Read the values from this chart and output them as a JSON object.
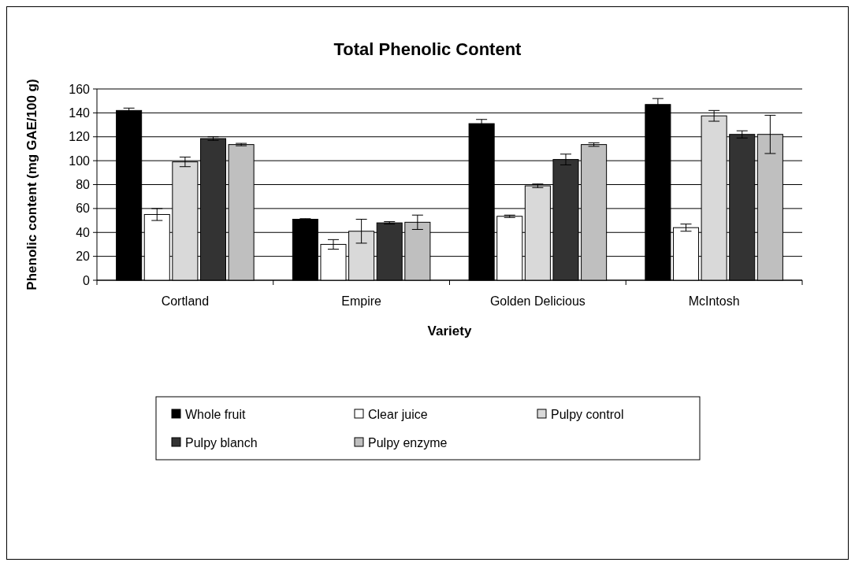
{
  "chart_data": {
    "type": "bar",
    "title": "Total Phenolic Content",
    "xlabel": "Variety",
    "ylabel": "Phenolic content (mg GAE/100 g)",
    "categories": [
      "Cortland",
      "Empire",
      "Golden Delicious",
      "McIntosh"
    ],
    "series": [
      {
        "name": "Whole fruit",
        "color": "#000000",
        "values": [
          142,
          51,
          131,
          147
        ],
        "errors": [
          2,
          0.5,
          3.5,
          5
        ]
      },
      {
        "name": "Clear juice",
        "color": "#ffffff",
        "values": [
          55,
          30,
          53.5,
          44
        ],
        "errors": [
          5,
          4,
          1,
          3
        ]
      },
      {
        "name": "Pulpy control",
        "color": "#d9d9d9",
        "values": [
          99,
          41,
          79,
          137.5
        ],
        "errors": [
          4,
          10,
          1.5,
          4.5
        ]
      },
      {
        "name": "Pulpy blanch",
        "color": "#333333",
        "values": [
          118.5,
          48,
          101,
          122
        ],
        "errors": [
          1.5,
          1,
          4.5,
          3
        ]
      },
      {
        "name": "Pulpy enzyme",
        "color": "#bfbfbf",
        "values": [
          113.5,
          48.5,
          113.5,
          122
        ],
        "errors": [
          1,
          6,
          1.5,
          16
        ]
      }
    ],
    "ylim": [
      0,
      160
    ],
    "yticks": [
      0,
      20,
      40,
      60,
      80,
      100,
      120,
      140,
      160
    ],
    "grid": "y",
    "legend": "bottom"
  }
}
